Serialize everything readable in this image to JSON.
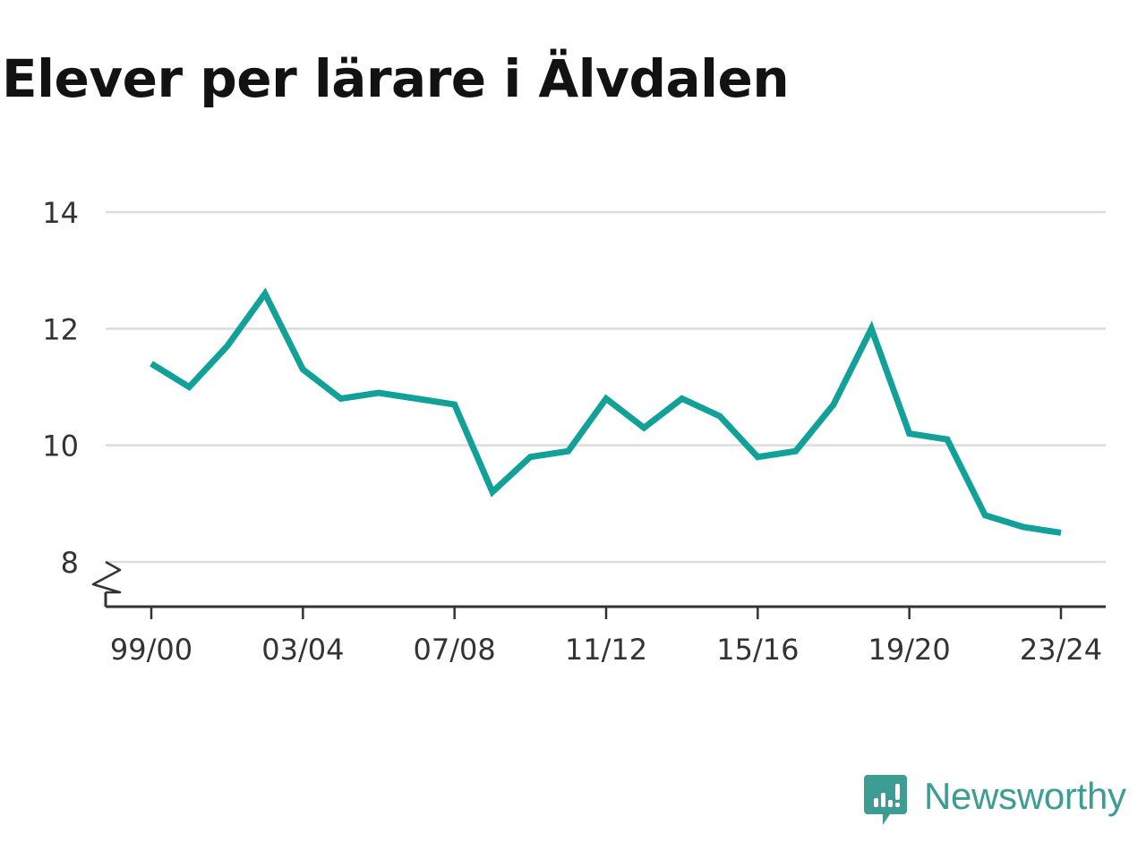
{
  "chart_data": {
    "type": "line",
    "title": "Elever per lärare i Älvdalen",
    "xlabel": "",
    "ylabel": "",
    "x": [
      "99/00",
      "00/01",
      "01/02",
      "02/03",
      "03/04",
      "04/05",
      "05/06",
      "06/07",
      "07/08",
      "08/09",
      "09/10",
      "10/11",
      "11/12",
      "12/13",
      "13/14",
      "14/15",
      "15/16",
      "16/17",
      "17/18",
      "18/19",
      "19/20",
      "20/21",
      "21/22",
      "22/23",
      "23/24"
    ],
    "x_tick_labels": [
      "99/00",
      "03/04",
      "07/08",
      "11/12",
      "15/16",
      "19/20",
      "23/24"
    ],
    "y_ticks": [
      8,
      10,
      12,
      14
    ],
    "ylim": [
      7.25,
      14
    ],
    "y_axis_break": true,
    "grid": "horizontal",
    "color": "#12a199",
    "series": [
      {
        "values": [
          11.4,
          11.0,
          11.7,
          12.6,
          11.3,
          10.8,
          10.9,
          10.8,
          10.7,
          9.2,
          9.8,
          9.9,
          10.8,
          10.3,
          10.8,
          10.5,
          9.8,
          9.9,
          10.7,
          12.0,
          10.2,
          10.1,
          8.8,
          8.6,
          8.5
        ]
      }
    ]
  },
  "brand": {
    "name": "Newsworthy",
    "logo_icon": "newsworthy-chart-bubble-icon",
    "color": "#3d9c93"
  }
}
